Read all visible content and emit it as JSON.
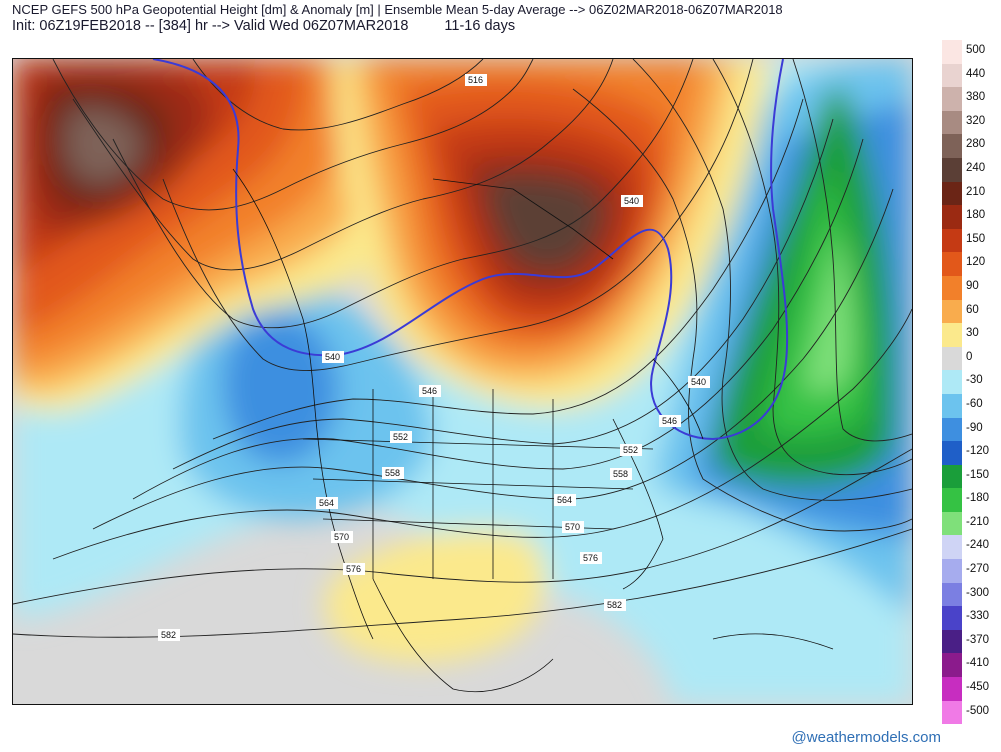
{
  "header": {
    "line1": "NCEP GEFS 500 hPa Geopotential Height [dm] & Anomaly [m] | Ensemble Mean 5-day Average --> 06Z02MAR2018-06Z07MAR2018",
    "line2": "Init: 06Z19FEB2018 -- [384] hr --> Valid Wed 06Z07MAR2018",
    "line2_range": "11-16 days"
  },
  "legend": {
    "items": [
      {
        "label": "500",
        "color": "#fbe6e3"
      },
      {
        "label": "440",
        "color": "#e9d3d0"
      },
      {
        "label": "380",
        "color": "#cdb2ac"
      },
      {
        "label": "320",
        "color": "#a88b82"
      },
      {
        "label": "280",
        "color": "#7e6258"
      },
      {
        "label": "240",
        "color": "#5b3f36"
      },
      {
        "label": "210",
        "color": "#6b2516"
      },
      {
        "label": "180",
        "color": "#9b2a12"
      },
      {
        "label": "150",
        "color": "#c53a14"
      },
      {
        "label": "120",
        "color": "#e2581a"
      },
      {
        "label": "90",
        "color": "#f2802a"
      },
      {
        "label": "60",
        "color": "#f9ac4d"
      },
      {
        "label": "30",
        "color": "#fbe98c"
      },
      {
        "label": "0",
        "color": "#d9d9d9"
      },
      {
        "label": "-30",
        "color": "#aee9f6"
      },
      {
        "label": "-60",
        "color": "#6cc3ee"
      },
      {
        "label": "-90",
        "color": "#3e8fe0"
      },
      {
        "label": "-120",
        "color": "#1f5fc8"
      },
      {
        "label": "-150",
        "color": "#1a9e3a"
      },
      {
        "label": "-180",
        "color": "#35c244"
      },
      {
        "label": "-210",
        "color": "#7fe07a"
      },
      {
        "label": "-240",
        "color": "#cfd4f5"
      },
      {
        "label": "-270",
        "color": "#a6acee"
      },
      {
        "label": "-300",
        "color": "#7b7fe2"
      },
      {
        "label": "-330",
        "color": "#4a43c9"
      },
      {
        "label": "-370",
        "color": "#4a1f86"
      },
      {
        "label": "-410",
        "color": "#8b1b8c"
      },
      {
        "label": "-450",
        "color": "#c72dc0"
      },
      {
        "label": "-500",
        "color": "#f07ae6"
      }
    ]
  },
  "map": {
    "contour_labels": [
      "516",
      "540",
      "540",
      "540",
      "546",
      "546",
      "552",
      "552",
      "558",
      "558",
      "564",
      "564",
      "570",
      "570",
      "576",
      "576",
      "582",
      "582"
    ]
  },
  "credit": "@weathermodels.com"
}
